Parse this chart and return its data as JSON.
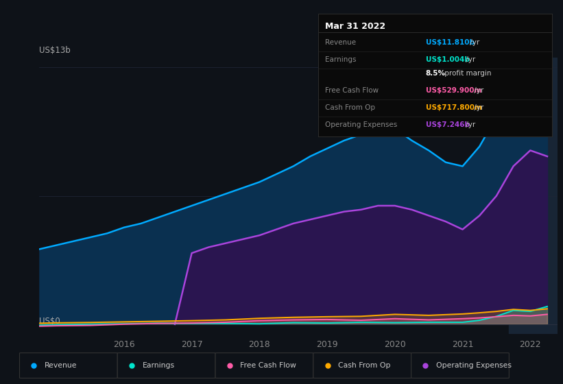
{
  "bg_color": "#0e1218",
  "chart_bg": "#0e1218",
  "title_box": {
    "title": "Mar 31 2022",
    "rows": [
      {
        "label": "Revenue",
        "value": "US$11.810b",
        "suffix": " /yr",
        "value_color": "#00aaff",
        "bold_value": true
      },
      {
        "label": "Earnings",
        "value": "US$1.004b",
        "suffix": " /yr",
        "value_color": "#00e5cc",
        "bold_value": true
      },
      {
        "label": "",
        "value": "8.5%",
        "suffix": " profit margin",
        "value_color": "#ffffff",
        "bold_value": true
      },
      {
        "label": "Free Cash Flow",
        "value": "US$529.900m",
        "suffix": " /yr",
        "value_color": "#ff5ca8",
        "bold_value": true
      },
      {
        "label": "Cash From Op",
        "value": "US$717.800m",
        "suffix": " /yr",
        "value_color": "#ffaa00",
        "bold_value": true
      },
      {
        "label": "Operating Expenses",
        "value": "US$7.246b",
        "suffix": " /yr",
        "value_color": "#aa44dd",
        "bold_value": true
      }
    ]
  },
  "ylabel_top": "US$13b",
  "ylabel_bot": "US$0",
  "x_ticks": [
    2016,
    2017,
    2018,
    2019,
    2020,
    2021,
    2022
  ],
  "revenue": {
    "color": "#00aaff",
    "fill": "#0a3050",
    "data_x": [
      2014.75,
      2015.0,
      2015.25,
      2015.5,
      2015.75,
      2016.0,
      2016.25,
      2016.5,
      2016.75,
      2017.0,
      2017.25,
      2017.5,
      2017.75,
      2018.0,
      2018.25,
      2018.5,
      2018.75,
      2019.0,
      2019.25,
      2019.5,
      2019.75,
      2020.0,
      2020.25,
      2020.5,
      2020.75,
      2021.0,
      2021.25,
      2021.5,
      2021.75,
      2022.0,
      2022.25
    ],
    "data_y": [
      3.8,
      4.0,
      4.2,
      4.4,
      4.6,
      4.9,
      5.1,
      5.4,
      5.7,
      6.0,
      6.3,
      6.6,
      6.9,
      7.2,
      7.6,
      8.0,
      8.5,
      8.9,
      9.3,
      9.6,
      9.8,
      9.9,
      9.3,
      8.8,
      8.2,
      8.0,
      9.0,
      10.5,
      12.5,
      12.1,
      12.2
    ]
  },
  "operating_expenses": {
    "color": "#aa44dd",
    "fill": "#2a1550",
    "data_x": [
      2016.75,
      2017.0,
      2017.25,
      2017.5,
      2017.75,
      2018.0,
      2018.25,
      2018.5,
      2018.75,
      2019.0,
      2019.25,
      2019.5,
      2019.75,
      2020.0,
      2020.25,
      2020.5,
      2020.75,
      2021.0,
      2021.25,
      2021.5,
      2021.75,
      2022.0,
      2022.25
    ],
    "data_y": [
      0.0,
      3.6,
      3.9,
      4.1,
      4.3,
      4.5,
      4.8,
      5.1,
      5.3,
      5.5,
      5.7,
      5.8,
      6.0,
      6.0,
      5.8,
      5.5,
      5.2,
      4.8,
      5.5,
      6.5,
      8.0,
      8.8,
      8.5
    ]
  },
  "earnings": {
    "color": "#00e5cc",
    "data_x": [
      2014.75,
      2015.0,
      2015.5,
      2016.0,
      2016.5,
      2017.0,
      2017.5,
      2018.0,
      2018.5,
      2019.0,
      2019.5,
      2020.0,
      2020.5,
      2021.0,
      2021.25,
      2021.5,
      2021.75,
      2022.0,
      2022.25
    ],
    "data_y": [
      -0.05,
      -0.03,
      0.0,
      0.02,
      0.05,
      0.04,
      0.04,
      0.02,
      0.08,
      0.06,
      0.1,
      0.08,
      0.1,
      0.1,
      0.2,
      0.4,
      0.7,
      0.65,
      0.9
    ]
  },
  "free_cash_flow": {
    "color": "#ff5ca8",
    "data_x": [
      2014.75,
      2015.0,
      2015.5,
      2016.0,
      2016.5,
      2017.0,
      2017.5,
      2018.0,
      2018.5,
      2019.0,
      2019.5,
      2020.0,
      2020.5,
      2021.0,
      2021.25,
      2021.5,
      2021.75,
      2022.0,
      2022.25
    ],
    "data_y": [
      -0.1,
      -0.08,
      -0.06,
      0.0,
      0.04,
      0.06,
      0.1,
      0.18,
      0.22,
      0.24,
      0.2,
      0.28,
      0.22,
      0.28,
      0.32,
      0.38,
      0.45,
      0.42,
      0.5
    ]
  },
  "cash_from_op": {
    "color": "#ffaa00",
    "data_x": [
      2014.75,
      2015.0,
      2015.5,
      2016.0,
      2016.5,
      2017.0,
      2017.5,
      2018.0,
      2018.5,
      2019.0,
      2019.5,
      2020.0,
      2020.5,
      2021.0,
      2021.25,
      2021.5,
      2021.75,
      2022.0,
      2022.25
    ],
    "data_y": [
      0.05,
      0.07,
      0.09,
      0.12,
      0.15,
      0.18,
      0.22,
      0.3,
      0.35,
      0.38,
      0.4,
      0.5,
      0.45,
      0.52,
      0.58,
      0.65,
      0.75,
      0.7,
      0.78
    ]
  },
  "legend_items": [
    {
      "label": "Revenue",
      "color": "#00aaff"
    },
    {
      "label": "Earnings",
      "color": "#00e5cc"
    },
    {
      "label": "Free Cash Flow",
      "color": "#ff5ca8"
    },
    {
      "label": "Cash From Op",
      "color": "#ffaa00"
    },
    {
      "label": "Operating Expenses",
      "color": "#aa44dd"
    }
  ]
}
